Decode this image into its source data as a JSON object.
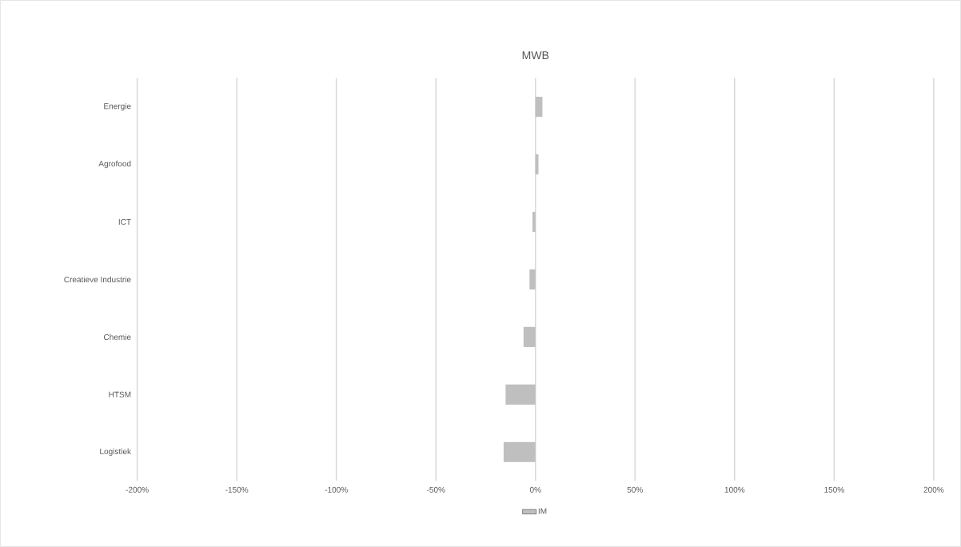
{
  "chart_data": {
    "type": "bar",
    "orientation": "horizontal",
    "title": "MWB",
    "categories": [
      "Energie",
      "Agrofood",
      "ICT",
      "Creatieve Industrie",
      "Chemie",
      "HTSM",
      "Logistiek"
    ],
    "series": [
      {
        "name": "IM",
        "color": "#bfbfbf",
        "values": [
          3.5,
          1.5,
          -1.5,
          -3,
          -6,
          -15,
          -16
        ]
      }
    ],
    "xlim": [
      -200,
      200
    ],
    "xticks": [
      {
        "value": -200,
        "label": "-200%"
      },
      {
        "value": -150,
        "label": "-150%"
      },
      {
        "value": -100,
        "label": "-100%"
      },
      {
        "value": -50,
        "label": "-50%"
      },
      {
        "value": 0,
        "label": "0%"
      },
      {
        "value": 50,
        "label": "50%"
      },
      {
        "value": 100,
        "label": "100%"
      },
      {
        "value": 150,
        "label": "150%"
      },
      {
        "value": 200,
        "label": "200%"
      }
    ],
    "grid": "x",
    "legend": "bottom"
  }
}
